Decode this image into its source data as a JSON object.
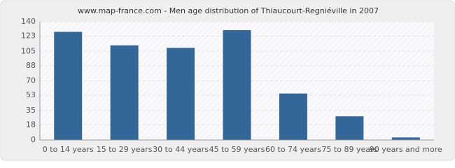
{
  "chart_data": {
    "type": "bar",
    "title": "www.map-france.com - Men age distribution of Thiaucourt-Regniéville in 2007",
    "categories": [
      "0 to 14 years",
      "15 to 29 years",
      "30 to 44 years",
      "45 to 59 years",
      "60 to 74 years",
      "75 to 89 years",
      "90 years and more"
    ],
    "values": [
      128,
      112,
      109,
      130,
      55,
      28,
      3
    ],
    "color": "#336699",
    "ylim": [
      0,
      140
    ],
    "yticks": [
      0,
      18,
      35,
      53,
      70,
      88,
      105,
      123,
      140
    ],
    "grid": true
  }
}
